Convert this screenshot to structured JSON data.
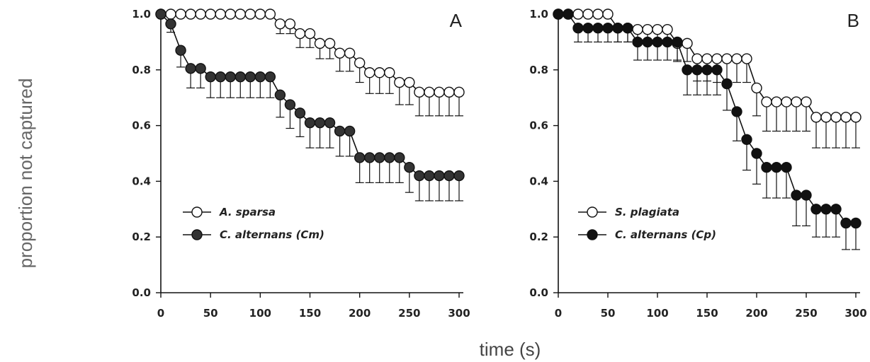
{
  "figure": {
    "ylabel": "proportion not captured",
    "xlabel": "time (s)"
  },
  "chart_data": [
    {
      "type": "line",
      "panel": "A",
      "xlim": [
        0,
        300
      ],
      "ylim": [
        0,
        1
      ],
      "xticks": [
        "0",
        "50",
        "100",
        "150",
        "200",
        "250",
        "300"
      ],
      "yticks": [
        "0.0",
        "0.2",
        "0.4",
        "0.6",
        "0.8",
        "1.0"
      ],
      "legend_placement": "bottom-left",
      "series": [
        {
          "name": "A. sparsa",
          "fill": "#ffffff",
          "x": [
            0,
            10,
            20,
            30,
            40,
            50,
            60,
            70,
            80,
            90,
            100,
            110,
            120,
            130,
            140,
            150,
            160,
            170,
            180,
            190,
            200,
            210,
            220,
            230,
            240,
            250,
            260,
            270,
            280,
            290,
            300
          ],
          "y": [
            1.0,
            1.0,
            1.0,
            1.0,
            1.0,
            1.0,
            1.0,
            1.0,
            1.0,
            1.0,
            1.0,
            1.0,
            0.965,
            0.965,
            0.93,
            0.93,
            0.895,
            0.895,
            0.86,
            0.86,
            0.825,
            0.79,
            0.79,
            0.79,
            0.755,
            0.755,
            0.72,
            0.72,
            0.72,
            0.72,
            0.72
          ],
          "err": [
            0,
            0,
            0,
            0,
            0,
            0,
            0,
            0,
            0,
            0,
            0,
            0,
            0.035,
            0.035,
            0.05,
            0.05,
            0.055,
            0.055,
            0.065,
            0.065,
            0.07,
            0.075,
            0.075,
            0.075,
            0.08,
            0.08,
            0.085,
            0.085,
            0.085,
            0.085,
            0.085
          ]
        },
        {
          "name": "C. alternans (Cm)",
          "fill": "#333333",
          "x": [
            0,
            10,
            20,
            30,
            40,
            50,
            60,
            70,
            80,
            90,
            100,
            110,
            120,
            130,
            140,
            150,
            160,
            170,
            180,
            190,
            200,
            210,
            220,
            230,
            240,
            250,
            260,
            270,
            280,
            290,
            300
          ],
          "y": [
            1.0,
            0.965,
            0.87,
            0.805,
            0.805,
            0.775,
            0.775,
            0.775,
            0.775,
            0.775,
            0.775,
            0.775,
            0.71,
            0.675,
            0.645,
            0.61,
            0.61,
            0.61,
            0.58,
            0.58,
            0.485,
            0.485,
            0.485,
            0.485,
            0.485,
            0.45,
            0.42,
            0.42,
            0.42,
            0.42,
            0.42
          ],
          "err": [
            0,
            0.03,
            0.06,
            0.07,
            0.07,
            0.075,
            0.075,
            0.075,
            0.075,
            0.075,
            0.075,
            0.075,
            0.08,
            0.085,
            0.085,
            0.09,
            0.09,
            0.09,
            0.09,
            0.09,
            0.09,
            0.09,
            0.09,
            0.09,
            0.09,
            0.09,
            0.09,
            0.09,
            0.09,
            0.09,
            0.09
          ]
        }
      ]
    },
    {
      "type": "line",
      "panel": "B",
      "xlim": [
        0,
        300
      ],
      "ylim": [
        0,
        1
      ],
      "xticks": [
        "0",
        "50",
        "100",
        "150",
        "200",
        "250",
        "300"
      ],
      "yticks": [
        "0.0",
        "0.2",
        "0.4",
        "0.6",
        "0.8",
        "1.0"
      ],
      "legend_placement": "bottom-left",
      "series": [
        {
          "name": "S. plagiata",
          "fill": "#ffffff",
          "x": [
            0,
            10,
            20,
            30,
            40,
            50,
            60,
            70,
            80,
            90,
            100,
            110,
            120,
            130,
            140,
            150,
            160,
            170,
            180,
            190,
            200,
            210,
            220,
            230,
            240,
            250,
            260,
            270,
            280,
            290,
            300
          ],
          "y": [
            1.0,
            1.0,
            1.0,
            1.0,
            1.0,
            1.0,
            0.95,
            0.95,
            0.945,
            0.945,
            0.945,
            0.945,
            0.895,
            0.895,
            0.84,
            0.84,
            0.84,
            0.84,
            0.84,
            0.84,
            0.735,
            0.685,
            0.685,
            0.685,
            0.685,
            0.685,
            0.63,
            0.63,
            0.63,
            0.63,
            0.63
          ],
          "err": [
            0,
            0,
            0,
            0,
            0,
            0,
            0.05,
            0.05,
            0.055,
            0.055,
            0.055,
            0.055,
            0.065,
            0.065,
            0.08,
            0.08,
            0.085,
            0.085,
            0.085,
            0.085,
            0.1,
            0.105,
            0.105,
            0.105,
            0.105,
            0.105,
            0.11,
            0.11,
            0.11,
            0.11,
            0.11
          ]
        },
        {
          "name": "C. alternans (Cp)",
          "fill": "#111111",
          "x": [
            0,
            10,
            20,
            30,
            40,
            50,
            60,
            70,
            80,
            90,
            100,
            110,
            120,
            130,
            140,
            150,
            160,
            170,
            180,
            190,
            200,
            210,
            220,
            230,
            240,
            250,
            260,
            270,
            280,
            290,
            300
          ],
          "y": [
            1.0,
            1.0,
            0.95,
            0.95,
            0.95,
            0.95,
            0.95,
            0.95,
            0.9,
            0.9,
            0.9,
            0.9,
            0.9,
            0.8,
            0.8,
            0.8,
            0.8,
            0.75,
            0.65,
            0.55,
            0.5,
            0.45,
            0.45,
            0.45,
            0.35,
            0.35,
            0.3,
            0.3,
            0.3,
            0.25,
            0.25
          ],
          "err": [
            0,
            0,
            0.05,
            0.05,
            0.05,
            0.05,
            0.05,
            0.05,
            0.065,
            0.065,
            0.065,
            0.065,
            0.065,
            0.09,
            0.09,
            0.09,
            0.09,
            0.095,
            0.105,
            0.11,
            0.11,
            0.11,
            0.11,
            0.11,
            0.11,
            0.11,
            0.1,
            0.1,
            0.1,
            0.095,
            0.095
          ]
        }
      ]
    }
  ]
}
